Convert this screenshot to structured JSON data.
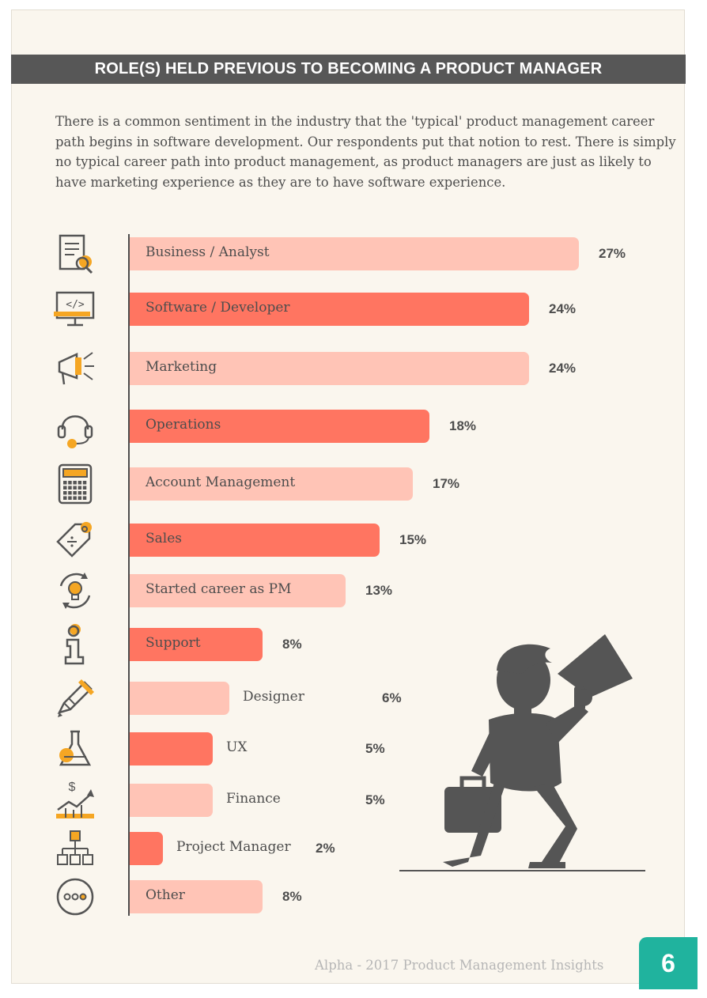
{
  "header": {
    "title": "ROLE(S) HELD PREVIOUS TO BECOMING A PRODUCT MANAGER"
  },
  "intro": "There is a common sentiment in the industry that the 'typical' product management career path begins in software development. Our respondents put that notion to rest. There is simply no typical career path into product management, as product managers are just as likely to have marketing experience as they are to have software experience.",
  "colors": {
    "light_bar": "#ffc4b6",
    "dark_bar": "#ff7561",
    "accent": "#f5a623",
    "icon_stroke": "#555555",
    "title_bar": "#575757",
    "page_badge": "#20b39e"
  },
  "chart_data": {
    "type": "bar",
    "orientation": "horizontal",
    "title": "ROLE(S) HELD PREVIOUS TO BECOMING A PRODUCT MANAGER",
    "categories": [
      "Business / Analyst",
      "Software / Developer",
      "Marketing",
      "Operations",
      "Account Management",
      "Sales",
      "Started career as PM",
      "Support",
      "Designer",
      "UX",
      "Finance",
      "Project Manager",
      "Other"
    ],
    "values": [
      27,
      24,
      24,
      18,
      17,
      15,
      13,
      8,
      6,
      5,
      5,
      2,
      8
    ],
    "value_labels": [
      "27%",
      "24%",
      "24%",
      "18%",
      "17%",
      "15%",
      "13%",
      "8%",
      "6%",
      "5%",
      "5%",
      "2%",
      "8%"
    ],
    "icons": [
      "document-magnifier-icon",
      "code-monitor-icon",
      "megaphone-icon",
      "headset-icon",
      "calculator-icon",
      "price-tag-icon",
      "lightbulb-cycle-icon",
      "info-icon",
      "pencil-ruler-icon",
      "flask-icon",
      "dollar-growth-chart-icon",
      "org-chart-icon",
      "more-dots-icon"
    ],
    "bar_shades": [
      "light",
      "dark",
      "light",
      "dark",
      "light",
      "dark",
      "light",
      "dark",
      "light",
      "dark",
      "light",
      "dark",
      "light"
    ],
    "unit": "%",
    "xlim": [
      0,
      27
    ],
    "grid": false,
    "legend": "none"
  },
  "illustration": {
    "name": "person-with-megaphone-and-briefcase"
  },
  "footer": {
    "text": "Alpha - 2017 Product Management Insights",
    "page_number": "6"
  }
}
